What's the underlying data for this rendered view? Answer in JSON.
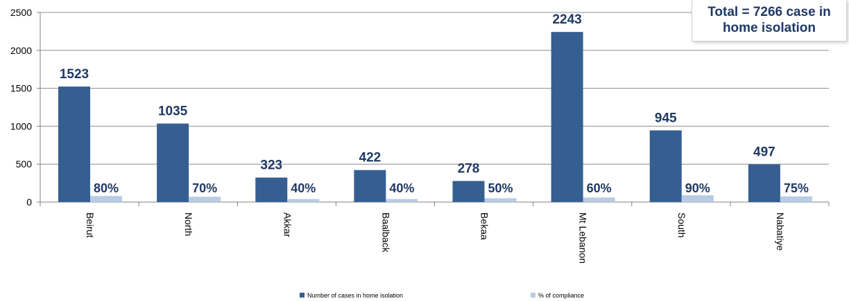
{
  "annotation": {
    "line1": "Total = 7266 case in",
    "line2": "home isolation"
  },
  "chart_data": {
    "type": "bar",
    "categories": [
      "Beirut",
      "North",
      "Akkar",
      "Baalback",
      "Bekaa",
      "Mt Lebanon",
      "South",
      "Nabatiye"
    ],
    "series": [
      {
        "name": "Number of cases in home isolation",
        "values": [
          1523,
          1035,
          323,
          422,
          278,
          2243,
          945,
          497
        ],
        "labels": [
          "1523",
          "1035",
          "323",
          "422",
          "278",
          "2243",
          "945",
          "497"
        ],
        "color": "#365f91"
      },
      {
        "name": "% of compliance",
        "values": [
          80,
          70,
          40,
          40,
          50,
          60,
          90,
          75
        ],
        "labels": [
          "80%",
          "70%",
          "40%",
          "40%",
          "50%",
          "60%",
          "90%",
          "75%"
        ],
        "color": "#b8cce4"
      }
    ],
    "yticks": [
      "0",
      "500",
      "1000",
      "1500",
      "2000",
      "2500"
    ],
    "ylim": [
      0,
      2500
    ],
    "grid": true,
    "legend_position": "bottom"
  }
}
